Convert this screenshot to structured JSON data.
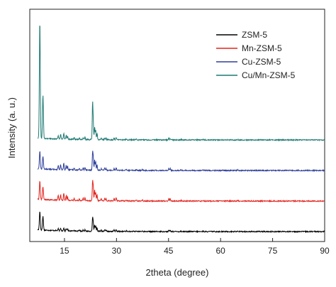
{
  "chart_data": {
    "type": "line",
    "title": "",
    "xlabel": "2theta (degree)",
    "ylabel": "Intensity (a. u.)",
    "xlim": [
      5,
      90
    ],
    "x_ticks": [
      15,
      30,
      45,
      60,
      75,
      90
    ],
    "y_ticks_shown": false,
    "y_unit_note": "arbitrary units; series vertically offset",
    "grid": false,
    "legend_position": "top-right",
    "series": [
      {
        "name": "ZSM-5",
        "color": "#000000",
        "baseline": 0.0,
        "peaks": [
          {
            "x": 7.9,
            "h": 0.62
          },
          {
            "x": 8.8,
            "h": 0.45
          },
          {
            "x": 13.2,
            "h": 0.06
          },
          {
            "x": 13.9,
            "h": 0.08
          },
          {
            "x": 14.8,
            "h": 0.1
          },
          {
            "x": 15.5,
            "h": 0.07
          },
          {
            "x": 15.9,
            "h": 0.06
          },
          {
            "x": 17.8,
            "h": 0.04
          },
          {
            "x": 19.3,
            "h": 0.04
          },
          {
            "x": 20.4,
            "h": 0.04
          },
          {
            "x": 20.9,
            "h": 0.05
          },
          {
            "x": 23.1,
            "h": 0.42
          },
          {
            "x": 23.3,
            "h": 0.26
          },
          {
            "x": 23.7,
            "h": 0.2
          },
          {
            "x": 24.0,
            "h": 0.16
          },
          {
            "x": 24.4,
            "h": 0.12
          },
          {
            "x": 25.6,
            "h": 0.04
          },
          {
            "x": 26.6,
            "h": 0.05
          },
          {
            "x": 27.0,
            "h": 0.04
          },
          {
            "x": 29.3,
            "h": 0.05
          },
          {
            "x": 29.9,
            "h": 0.07
          },
          {
            "x": 32.8,
            "h": 0.02
          },
          {
            "x": 35.7,
            "h": 0.02
          },
          {
            "x": 37.5,
            "h": 0.02
          },
          {
            "x": 45.1,
            "h": 0.04
          },
          {
            "x": 45.5,
            "h": 0.035
          },
          {
            "x": 48.6,
            "h": 0.015
          },
          {
            "x": 55.0,
            "h": 0.015
          },
          {
            "x": 65.0,
            "h": 0.01
          }
        ]
      },
      {
        "name": "Mn-ZSM-5",
        "color": "#e3221c",
        "baseline": 1.0,
        "peaks": [
          {
            "x": 7.9,
            "h": 0.6
          },
          {
            "x": 8.8,
            "h": 0.42
          },
          {
            "x": 13.2,
            "h": 0.15
          },
          {
            "x": 13.9,
            "h": 0.18
          },
          {
            "x": 14.8,
            "h": 0.24
          },
          {
            "x": 15.5,
            "h": 0.16
          },
          {
            "x": 15.9,
            "h": 0.12
          },
          {
            "x": 17.8,
            "h": 0.07
          },
          {
            "x": 19.3,
            "h": 0.06
          },
          {
            "x": 20.4,
            "h": 0.08
          },
          {
            "x": 20.9,
            "h": 0.1
          },
          {
            "x": 23.1,
            "h": 0.6
          },
          {
            "x": 23.3,
            "h": 0.42
          },
          {
            "x": 23.7,
            "h": 0.34
          },
          {
            "x": 24.0,
            "h": 0.28
          },
          {
            "x": 24.4,
            "h": 0.2
          },
          {
            "x": 25.6,
            "h": 0.06
          },
          {
            "x": 26.6,
            "h": 0.08
          },
          {
            "x": 27.0,
            "h": 0.06
          },
          {
            "x": 29.3,
            "h": 0.08
          },
          {
            "x": 29.9,
            "h": 0.12
          },
          {
            "x": 32.8,
            "h": 0.03
          },
          {
            "x": 35.7,
            "h": 0.03
          },
          {
            "x": 37.5,
            "h": 0.03
          },
          {
            "x": 45.1,
            "h": 0.08
          },
          {
            "x": 45.5,
            "h": 0.07
          },
          {
            "x": 48.6,
            "h": 0.02
          },
          {
            "x": 55.0,
            "h": 0.02
          },
          {
            "x": 65.0,
            "h": 0.015
          }
        ]
      },
      {
        "name": "Cu-ZSM-5",
        "color": "#2e3f9a",
        "baseline": 2.0,
        "peaks": [
          {
            "x": 7.9,
            "h": 0.58
          },
          {
            "x": 8.8,
            "h": 0.4
          },
          {
            "x": 13.2,
            "h": 0.14
          },
          {
            "x": 13.9,
            "h": 0.16
          },
          {
            "x": 14.8,
            "h": 0.22
          },
          {
            "x": 15.5,
            "h": 0.15
          },
          {
            "x": 15.9,
            "h": 0.11
          },
          {
            "x": 17.8,
            "h": 0.06
          },
          {
            "x": 19.3,
            "h": 0.05
          },
          {
            "x": 20.4,
            "h": 0.07
          },
          {
            "x": 20.9,
            "h": 0.09
          },
          {
            "x": 23.1,
            "h": 0.56
          },
          {
            "x": 23.3,
            "h": 0.4
          },
          {
            "x": 23.7,
            "h": 0.32
          },
          {
            "x": 24.0,
            "h": 0.26
          },
          {
            "x": 24.4,
            "h": 0.18
          },
          {
            "x": 25.6,
            "h": 0.05
          },
          {
            "x": 26.6,
            "h": 0.07
          },
          {
            "x": 27.0,
            "h": 0.05
          },
          {
            "x": 29.3,
            "h": 0.07
          },
          {
            "x": 29.9,
            "h": 0.1
          },
          {
            "x": 32.8,
            "h": 0.03
          },
          {
            "x": 35.7,
            "h": 0.03
          },
          {
            "x": 37.5,
            "h": 0.03
          },
          {
            "x": 45.1,
            "h": 0.07
          },
          {
            "x": 45.5,
            "h": 0.06
          },
          {
            "x": 48.6,
            "h": 0.02
          },
          {
            "x": 55.0,
            "h": 0.02
          },
          {
            "x": 65.0,
            "h": 0.015
          }
        ]
      },
      {
        "name": "Cu/Mn-ZSM-5",
        "color": "#1f7a72",
        "baseline": 3.0,
        "peaks": [
          {
            "x": 7.9,
            "h": 3.85
          },
          {
            "x": 8.8,
            "h": 1.42
          },
          {
            "x": 13.2,
            "h": 0.12
          },
          {
            "x": 13.9,
            "h": 0.15
          },
          {
            "x": 14.8,
            "h": 0.2
          },
          {
            "x": 15.5,
            "h": 0.14
          },
          {
            "x": 15.9,
            "h": 0.1
          },
          {
            "x": 17.8,
            "h": 0.06
          },
          {
            "x": 19.3,
            "h": 0.05
          },
          {
            "x": 20.4,
            "h": 0.06
          },
          {
            "x": 20.9,
            "h": 0.08
          },
          {
            "x": 23.1,
            "h": 1.18
          },
          {
            "x": 23.3,
            "h": 0.55
          },
          {
            "x": 23.7,
            "h": 0.42
          },
          {
            "x": 24.0,
            "h": 0.32
          },
          {
            "x": 24.4,
            "h": 0.22
          },
          {
            "x": 25.6,
            "h": 0.05
          },
          {
            "x": 26.6,
            "h": 0.06
          },
          {
            "x": 27.0,
            "h": 0.05
          },
          {
            "x": 29.3,
            "h": 0.06
          },
          {
            "x": 29.9,
            "h": 0.09
          },
          {
            "x": 32.8,
            "h": 0.025
          },
          {
            "x": 35.7,
            "h": 0.025
          },
          {
            "x": 37.5,
            "h": 0.025
          },
          {
            "x": 45.1,
            "h": 0.06
          },
          {
            "x": 45.5,
            "h": 0.05
          },
          {
            "x": 48.6,
            "h": 0.02
          },
          {
            "x": 55.0,
            "h": 0.02
          },
          {
            "x": 65.0,
            "h": 0.015
          }
        ]
      }
    ]
  }
}
